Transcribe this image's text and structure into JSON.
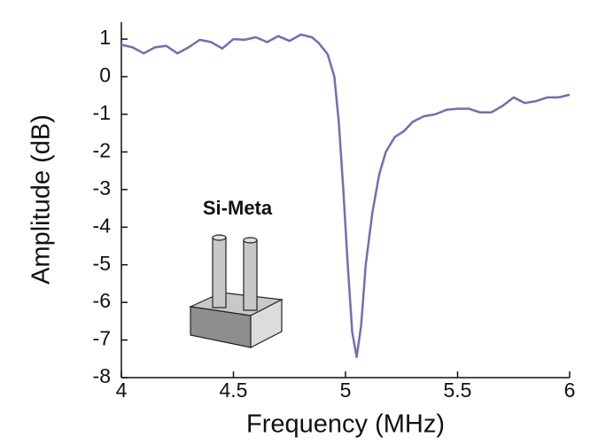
{
  "chart_data": {
    "type": "line",
    "annotation": "Si-Meta",
    "x_label": "Frequency (MHz)",
    "y_label": "Amplitude (dB)",
    "xlim": [
      4,
      6
    ],
    "xticks": [
      4,
      4.5,
      5,
      5.5,
      6
    ],
    "ylim": [
      -8,
      1.45
    ],
    "yticks": [
      1,
      0,
      -1,
      -2,
      -3,
      -4,
      -5,
      -6,
      -7,
      -8
    ],
    "x": [
      4.0,
      4.05,
      4.1,
      4.15,
      4.2,
      4.25,
      4.3,
      4.35,
      4.4,
      4.45,
      4.5,
      4.55,
      4.6,
      4.65,
      4.7,
      4.75,
      4.8,
      4.85,
      4.88,
      4.92,
      4.95,
      4.97,
      4.99,
      5.01,
      5.03,
      5.05,
      5.07,
      5.09,
      5.12,
      5.15,
      5.18,
      5.22,
      5.26,
      5.3,
      5.35,
      5.4,
      5.45,
      5.5,
      5.55,
      5.6,
      5.65,
      5.7,
      5.75,
      5.8,
      5.85,
      5.9,
      5.95,
      6.0
    ],
    "series": [
      {
        "color": "#6f6fb4",
        "values": [
          0.85,
          0.78,
          0.62,
          0.78,
          0.82,
          0.62,
          0.78,
          0.98,
          0.92,
          0.75,
          1.0,
          0.98,
          1.05,
          0.92,
          1.08,
          0.95,
          1.12,
          1.05,
          0.9,
          0.6,
          0.0,
          -1.2,
          -3.0,
          -5.0,
          -6.8,
          -7.45,
          -6.6,
          -5.0,
          -3.6,
          -2.6,
          -2.0,
          -1.6,
          -1.45,
          -1.2,
          -1.05,
          -1.0,
          -0.88,
          -0.85,
          -0.85,
          -0.95,
          -0.95,
          -0.78,
          -0.55,
          -0.7,
          -0.65,
          -0.55,
          -0.55,
          -0.48
        ]
      }
    ]
  }
}
